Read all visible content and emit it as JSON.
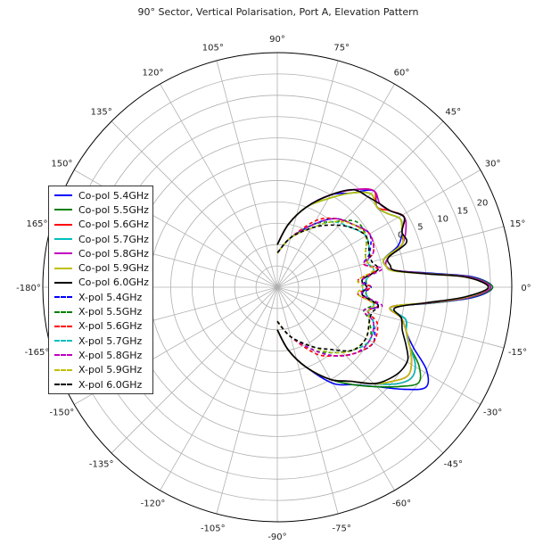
{
  "chart_data": {
    "type": "polar-line",
    "title": "90° Sector, Vertical Polarisation, Port A, Elevation Pattern",
    "angle_unit": "degrees",
    "angle_ticks": [
      {
        "value": 0,
        "label": "0°"
      },
      {
        "value": 15,
        "label": "15°"
      },
      {
        "value": 30,
        "label": "30°"
      },
      {
        "value": 45,
        "label": "45°"
      },
      {
        "value": 60,
        "label": "60°"
      },
      {
        "value": 75,
        "label": "75°"
      },
      {
        "value": 90,
        "label": "90°"
      },
      {
        "value": 105,
        "label": "105°"
      },
      {
        "value": 120,
        "label": "120°"
      },
      {
        "value": 135,
        "label": "135°"
      },
      {
        "value": 150,
        "label": "150°"
      },
      {
        "value": 165,
        "label": "165°"
      },
      {
        "value": 180,
        "label": "-180°"
      },
      {
        "value": -165,
        "label": "-165°"
      },
      {
        "value": -150,
        "label": "-150°"
      },
      {
        "value": -135,
        "label": "-135°"
      },
      {
        "value": -120,
        "label": "-120°"
      },
      {
        "value": -105,
        "label": "-105°"
      },
      {
        "value": -90,
        "label": "-90°"
      },
      {
        "value": -75,
        "label": "-75°"
      },
      {
        "value": -60,
        "label": "-60°"
      },
      {
        "value": -45,
        "label": "-45°"
      },
      {
        "value": -30,
        "label": "-30°"
      },
      {
        "value": -15,
        "label": "-15°"
      }
    ],
    "radial_ticks": [
      {
        "value": 0,
        "label": "0"
      },
      {
        "value": 5,
        "label": "5"
      },
      {
        "value": 10,
        "label": "10"
      },
      {
        "value": 15,
        "label": "15"
      },
      {
        "value": 20,
        "label": "20"
      }
    ],
    "rlim": [
      -30,
      25
    ],
    "grid": true,
    "legend_position": "left",
    "series": [
      {
        "name": "Co-pol 5.4GHz",
        "color": "#0000ff",
        "style": "solid",
        "angles": [
          0,
          3,
          5,
          8,
          11,
          15,
          19,
          24,
          29,
          34,
          39,
          45,
          52,
          60,
          70,
          80,
          90,
          -3,
          -6,
          -10,
          -14,
          -19,
          -24,
          -29,
          -34,
          -39,
          -45,
          -52,
          -60,
          -70,
          -80,
          -90
        ],
        "gains": [
          20.5,
          16,
          7,
          -2,
          -4,
          -4,
          0,
          2,
          3,
          1,
          0,
          2,
          -2,
          -5,
          -10,
          -15,
          -20,
          16,
          6,
          -3,
          1,
          2,
          5,
          10,
          12,
          8,
          3,
          -1,
          -4,
          -10,
          -15,
          -20
        ]
      },
      {
        "name": "Co-pol 5.5GHz",
        "color": "#008000",
        "style": "solid",
        "angles": [
          0,
          3,
          5,
          8,
          11,
          15,
          19,
          24,
          29,
          34,
          39,
          45,
          52,
          60,
          70,
          80,
          90,
          -3,
          -6,
          -10,
          -14,
          -19,
          -24,
          -29,
          -34,
          -39,
          -45,
          -52,
          -60,
          -70,
          -80,
          -90
        ],
        "gains": [
          20.5,
          15.5,
          6.5,
          -2,
          -4,
          -4,
          1,
          2,
          3,
          1,
          0,
          1,
          -2,
          -6,
          -10,
          -15,
          -20,
          15.5,
          6,
          -3,
          1,
          2,
          4,
          8,
          10,
          7,
          3,
          -1,
          -5,
          -10,
          -15,
          -20
        ]
      },
      {
        "name": "Co-pol 5.6GHz",
        "color": "#ff0000",
        "style": "solid",
        "angles": [
          0,
          3,
          5,
          8,
          11,
          15,
          19,
          24,
          29,
          34,
          39,
          45,
          52,
          60,
          70,
          80,
          90,
          -3,
          -6,
          -10,
          -14,
          -19,
          -24,
          -29,
          -34,
          -39,
          -45,
          -52,
          -60,
          -70,
          -80,
          -90
        ],
        "gains": [
          20,
          15,
          6,
          -2,
          -4,
          -3,
          1,
          2,
          4,
          2,
          0,
          2,
          -1,
          -5,
          -10,
          -15,
          -20,
          15,
          5.5,
          -3,
          0,
          2,
          4,
          7,
          8,
          6,
          2,
          -2,
          -5,
          -10,
          -15,
          -20
        ]
      },
      {
        "name": "Co-pol 5.7GHz",
        "color": "#00bfbf",
        "style": "solid",
        "angles": [
          0,
          3,
          5,
          8,
          11,
          15,
          19,
          24,
          29,
          34,
          39,
          45,
          52,
          60,
          70,
          80,
          90,
          -3,
          -6,
          -10,
          -14,
          -19,
          -24,
          -29,
          -34,
          -39,
          -45,
          -52,
          -60,
          -70,
          -80,
          -90
        ],
        "gains": [
          20,
          15,
          6,
          -2.5,
          -4,
          -4,
          1,
          2,
          3,
          1,
          0,
          1,
          -2,
          -6,
          -10,
          -15,
          -20,
          15,
          5.5,
          -3,
          1,
          2,
          4,
          7,
          8,
          6,
          2,
          -2,
          -5,
          -10,
          -15,
          -20
        ]
      },
      {
        "name": "Co-pol 5.8GHz",
        "color": "#bf00bf",
        "style": "solid",
        "angles": [
          0,
          3,
          5,
          8,
          11,
          15,
          19,
          24,
          29,
          34,
          39,
          45,
          52,
          60,
          70,
          80,
          90,
          -3,
          -6,
          -10,
          -14,
          -19,
          -24,
          -29,
          -34,
          -39,
          -45,
          -52,
          -60,
          -70,
          -80,
          -90
        ],
        "gains": [
          20,
          15,
          6,
          -2,
          -4,
          -3,
          1,
          3,
          4,
          2,
          1,
          2,
          -1,
          -5,
          -10,
          -15,
          -20,
          15,
          5.5,
          -3,
          0,
          2,
          4,
          6,
          7,
          5,
          2,
          -2,
          -5,
          -10,
          -15,
          -20
        ]
      },
      {
        "name": "Co-pol 5.9GHz",
        "color": "#bfbf00",
        "style": "solid",
        "angles": [
          0,
          3,
          5,
          8,
          11,
          15,
          19,
          24,
          29,
          34,
          39,
          45,
          52,
          60,
          70,
          80,
          90,
          -3,
          -6,
          -10,
          -14,
          -19,
          -24,
          -29,
          -34,
          -39,
          -45,
          -52,
          -60,
          -70,
          -80,
          -90
        ],
        "gains": [
          19.5,
          14.5,
          5.5,
          -2.5,
          -4,
          -4,
          1,
          2,
          3,
          1,
          0,
          1,
          -2,
          -6,
          -10,
          -15,
          -20,
          14.5,
          5,
          -3,
          0,
          2,
          4,
          6,
          7,
          5,
          2,
          -2,
          -5,
          -10,
          -15,
          -20
        ]
      },
      {
        "name": "Co-pol 6.0GHz",
        "color": "#000000",
        "style": "solid",
        "angles": [
          0,
          3,
          5,
          8,
          11,
          15,
          19,
          24,
          29,
          34,
          39,
          45,
          52,
          60,
          70,
          80,
          90,
          -3,
          -6,
          -10,
          -14,
          -19,
          -24,
          -29,
          -34,
          -39,
          -45,
          -52,
          -60,
          -70,
          -80,
          -90
        ],
        "gains": [
          19.5,
          14.5,
          5.5,
          -2,
          -3,
          -3,
          2,
          2,
          4,
          2,
          1,
          0,
          -1,
          -5,
          -10,
          -15,
          -20,
          14,
          5,
          -2,
          0,
          1,
          3,
          5,
          5,
          4,
          2,
          -2,
          -5,
          -10,
          -15,
          -20
        ]
      },
      {
        "name": "X-pol 5.4GHz",
        "color": "#0000ff",
        "style": "dashed",
        "angles": [
          0,
          5,
          10,
          15,
          20,
          30,
          40,
          50,
          60,
          75,
          90,
          -5,
          -10,
          -15,
          -20,
          -30,
          -40,
          -50,
          -60,
          -75,
          -90
        ],
        "gains": [
          -8,
          -10,
          -6,
          -9,
          -7,
          -5,
          -7,
          -9,
          -13,
          -18,
          -22,
          -10,
          -6,
          -8,
          -6,
          -4,
          -6,
          -9,
          -13,
          -18,
          -22
        ]
      },
      {
        "name": "X-pol 5.5GHz",
        "color": "#008000",
        "style": "dashed",
        "angles": [
          0,
          5,
          10,
          15,
          20,
          30,
          40,
          50,
          60,
          75,
          90,
          -5,
          -10,
          -15,
          -20,
          -30,
          -40,
          -50,
          -60,
          -75,
          -90
        ],
        "gains": [
          -9,
          -9,
          -7,
          -8,
          -8,
          -6,
          -6,
          -10,
          -13,
          -18,
          -22,
          -9,
          -7,
          -9,
          -7,
          -5,
          -7,
          -10,
          -13,
          -18,
          -22
        ]
      },
      {
        "name": "X-pol 5.6GHz",
        "color": "#ff0000",
        "style": "dashed",
        "angles": [
          0,
          5,
          10,
          15,
          20,
          30,
          40,
          50,
          60,
          75,
          90,
          -5,
          -10,
          -15,
          -20,
          -30,
          -40,
          -50,
          -60,
          -75,
          -90
        ],
        "gains": [
          -8,
          -11,
          -6,
          -9,
          -6,
          -5,
          -7,
          -9,
          -12,
          -18,
          -22,
          -11,
          -6,
          -8,
          -5,
          -4,
          -6,
          -9,
          -12,
          -18,
          -22
        ]
      },
      {
        "name": "X-pol 5.7GHz",
        "color": "#00bfbf",
        "style": "dashed",
        "angles": [
          0,
          5,
          10,
          15,
          20,
          30,
          40,
          50,
          60,
          75,
          90,
          -5,
          -10,
          -15,
          -20,
          -30,
          -40,
          -50,
          -60,
          -75,
          -90
        ],
        "gains": [
          -10,
          -9,
          -7,
          -8,
          -7,
          -6,
          -8,
          -10,
          -14,
          -18,
          -22,
          -9,
          -7,
          -8,
          -6,
          -5,
          -7,
          -10,
          -14,
          -18,
          -22
        ]
      },
      {
        "name": "X-pol 5.8GHz",
        "color": "#bf00bf",
        "style": "dashed",
        "angles": [
          0,
          5,
          10,
          15,
          20,
          30,
          40,
          50,
          60,
          75,
          90,
          -5,
          -10,
          -15,
          -20,
          -30,
          -40,
          -50,
          -60,
          -75,
          -90
        ],
        "gains": [
          -9,
          -10,
          -5,
          -9,
          -6,
          -5,
          -7,
          -9,
          -13,
          -18,
          -22,
          -10,
          -5,
          -9,
          -6,
          -5,
          -6,
          -9,
          -13,
          -18,
          -22
        ]
      },
      {
        "name": "X-pol 5.9GHz",
        "color": "#bfbf00",
        "style": "dashed",
        "angles": [
          0,
          5,
          10,
          15,
          20,
          30,
          40,
          50,
          60,
          75,
          90,
          -5,
          -10,
          -15,
          -20,
          -30,
          -40,
          -50,
          -60,
          -75,
          -90
        ],
        "gains": [
          -10,
          -11,
          -7,
          -8,
          -8,
          -6,
          -7,
          -10,
          -14,
          -18,
          -22,
          -11,
          -7,
          -8,
          -7,
          -6,
          -7,
          -10,
          -14,
          -18,
          -22
        ]
      },
      {
        "name": "X-pol 6.0GHz",
        "color": "#000000",
        "style": "dashed",
        "angles": [
          0,
          5,
          10,
          15,
          20,
          30,
          40,
          50,
          60,
          75,
          90,
          -5,
          -10,
          -15,
          -20,
          -30,
          -40,
          -50,
          -60,
          -75,
          -90
        ],
        "gains": [
          -9,
          -10,
          -6,
          -7,
          -7,
          -6,
          -8,
          -11,
          -14,
          -18,
          -22,
          -10,
          -6,
          -7,
          -7,
          -6,
          -7,
          -11,
          -14,
          -18,
          -22
        ]
      }
    ]
  }
}
